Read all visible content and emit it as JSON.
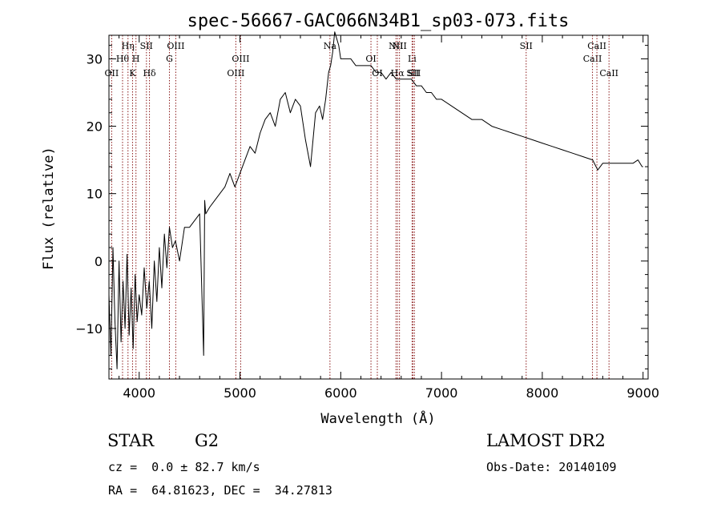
{
  "chart_data": {
    "type": "line",
    "title": "spec-56667-GAC066N34B1_sp03-073.fits",
    "xlabel": "Wavelength (Å)",
    "ylabel": "Flux (relative)",
    "xlim": [
      3700,
      9050
    ],
    "ylim": [
      -17.5,
      33.5
    ],
    "xticks": [
      4000,
      5000,
      6000,
      7000,
      8000,
      9000
    ],
    "yticks": [
      -10,
      0,
      10,
      20,
      30
    ],
    "grid": false,
    "line_color": "#000000",
    "marker_color": "#8b1a1a",
    "series": [
      {
        "x": [
          3700,
          3720,
          3740,
          3760,
          3780,
          3800,
          3820,
          3840,
          3860,
          3880,
          3900,
          3920,
          3940,
          3960,
          3980,
          4000,
          4025,
          4050,
          4075,
          4100,
          4125,
          4150,
          4175,
          4200,
          4225,
          4250,
          4275,
          4300,
          4330,
          4360,
          4400,
          4450,
          4500,
          4550,
          4600,
          4640,
          4650,
          4660,
          4700,
          4750,
          4800,
          4850,
          4900,
          4950,
          5000,
          5050,
          5100,
          5150,
          5200,
          5250,
          5300,
          5350,
          5400,
          5450,
          5500,
          5550,
          5600,
          5650,
          5700,
          5750,
          5790,
          5820,
          5850,
          5880,
          5900,
          5920,
          5940,
          5960,
          5980,
          6000,
          6050,
          6100,
          6150,
          6200,
          6250,
          6300,
          6350,
          6400,
          6450,
          6500,
          6550,
          6600,
          6650,
          6700,
          6750,
          6800,
          6850,
          6900,
          6950,
          7000,
          7100,
          7200,
          7300,
          7400,
          7500,
          7600,
          7700,
          7800,
          7900,
          8000,
          8100,
          8200,
          8300,
          8400,
          8500,
          8550,
          8600,
          8700,
          8800,
          8900,
          8950,
          8990,
          9000
        ],
        "y": [
          -5,
          -14,
          2,
          -9,
          -16,
          0,
          -12,
          -3,
          -10,
          1,
          -11,
          -4,
          -13,
          -2,
          -9,
          -5,
          -8,
          -1,
          -7,
          -3,
          -10,
          0,
          -6,
          2,
          -4,
          4,
          -1,
          5,
          2,
          3,
          0,
          5,
          5,
          6,
          7,
          -14,
          9,
          7,
          8,
          9,
          10,
          11,
          13,
          11,
          13,
          15,
          17,
          16,
          19,
          21,
          22,
          20,
          24,
          25,
          22,
          24,
          23,
          18,
          14,
          22,
          23,
          21,
          24,
          28,
          29,
          31,
          34,
          33,
          32,
          30,
          30,
          30,
          29,
          29,
          29,
          29,
          28,
          28,
          27,
          28,
          27,
          27,
          27,
          27,
          26,
          26,
          25,
          25,
          24,
          24,
          23,
          22,
          21,
          21,
          20,
          19.5,
          19,
          18.5,
          18,
          17.5,
          17,
          16.5,
          16,
          15.5,
          15,
          13.5,
          14.5,
          14.5,
          14.5,
          14.5,
          15,
          14,
          14
        ]
      }
    ],
    "line_markers": [
      {
        "x": 3727,
        "label": "OII",
        "row": 3
      },
      {
        "x": 3835,
        "label": "Hθ",
        "row": 2
      },
      {
        "x": 3889,
        "label": "Hη",
        "row": 1
      },
      {
        "x": 3934,
        "label": "K",
        "row": 3
      },
      {
        "x": 3968,
        "label": "H",
        "row": 2
      },
      {
        "x": 4072,
        "label": "SII",
        "row": 1
      },
      {
        "x": 4102,
        "label": "Hδ",
        "row": 3
      },
      {
        "x": 4300,
        "label": "G",
        "row": 2
      },
      {
        "x": 4363,
        "label": "OIII",
        "row": 1
      },
      {
        "x": 4959,
        "label": "OIII",
        "row": 3
      },
      {
        "x": 5007,
        "label": "OIII",
        "row": 2
      },
      {
        "x": 5893,
        "label": "Na",
        "row": 1
      },
      {
        "x": 6300,
        "label": "OI",
        "row": 2
      },
      {
        "x": 6363,
        "label": "OI",
        "row": 3
      },
      {
        "x": 6548,
        "label": "NII",
        "row": 1
      },
      {
        "x": 6563,
        "label": "Hα",
        "row": 3
      },
      {
        "x": 6583,
        "label": "NII",
        "row": 1
      },
      {
        "x": 6708,
        "label": "Li",
        "row": 2
      },
      {
        "x": 6716,
        "label": "SII",
        "row": 3
      },
      {
        "x": 6731,
        "label": "SII",
        "row": 3
      },
      {
        "x": 7840,
        "label": "SII",
        "row": 1
      },
      {
        "x": 8498,
        "label": "CaII",
        "row": 2
      },
      {
        "x": 8542,
        "label": "CaII",
        "row": 1
      },
      {
        "x": 8662,
        "label": "CaII",
        "row": 3
      }
    ]
  },
  "info": {
    "object_class": "STAR",
    "subclass": "G2",
    "survey": "LAMOST DR2",
    "redshift": "cz =  0.0 ± 82.7 km/s",
    "obs_date": "Obs-Date: 20140109",
    "coords": "RA =  64.81623, DEC =  34.27813"
  }
}
